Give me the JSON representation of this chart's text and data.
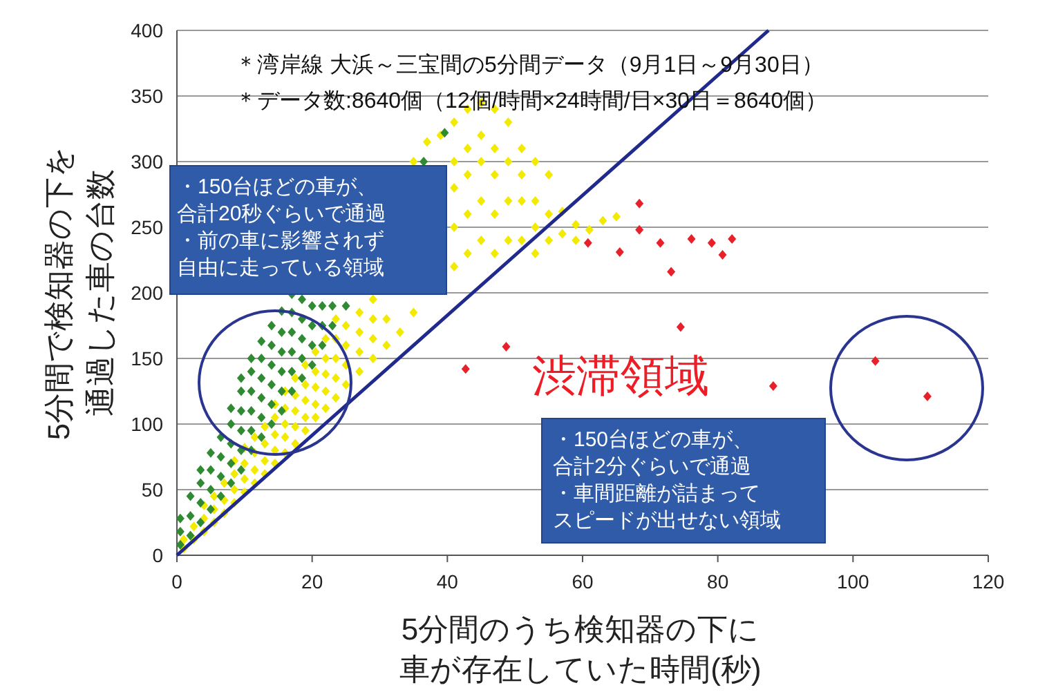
{
  "chart_data": {
    "type": "scatter",
    "xlabel": "5分間のうち検知器の下に車が存在していた時間(秒)",
    "ylabel": "5分間で検知器の下を通過した車の台数",
    "xlim": [
      0,
      120
    ],
    "xticks": [
      0,
      20,
      40,
      60,
      80,
      100,
      120
    ],
    "ylim": [
      0,
      400
    ],
    "yticks": [
      0,
      50,
      100,
      150,
      200,
      250,
      300,
      350,
      400
    ],
    "grid": "y",
    "marker": "diamond",
    "annotations": [
      "＊湾岸線 大浜～三宝間の5分間データ（9月1日～9月30日）",
      "＊データ数:8640個（12個/時間×24時間/日×30日＝8640個）",
      "・150台ほどの車が、合計20秒ぐらいで通過・前の車に影響されず自由に走っている領域",
      "渋滞領域",
      "・150台ほどの車が、合計2分ぐらいで通過・車間距離が詰まってスピードが出せない領域"
    ],
    "series": [
      {
        "color": "#f2ea00",
        "x": [
          1,
          1,
          2.5,
          2.5,
          4,
          4,
          4,
          5.5,
          5.5,
          5.5,
          7,
          7,
          7,
          8.5,
          8.5,
          8.5,
          8.5,
          10,
          10,
          10,
          10,
          11.5,
          11.5,
          11.5,
          11.5,
          13,
          13,
          13,
          13,
          14.5,
          14.5,
          14.5,
          14.5,
          14.5,
          16,
          16,
          16,
          16,
          16,
          17.5,
          17.5,
          17.5,
          17.5,
          17.5,
          19,
          19,
          19,
          19,
          19,
          20.5,
          20.5,
          20.5,
          20.5,
          20.5,
          22,
          22,
          22,
          22,
          22,
          23.5,
          23.5,
          23.5,
          23.5,
          23.5,
          25,
          25,
          25,
          25,
          27,
          27,
          27,
          27,
          29,
          29,
          29,
          29,
          31,
          31,
          33,
          35,
          35,
          37,
          39,
          41,
          41,
          41,
          41,
          41,
          43,
          43,
          43,
          43,
          43,
          45,
          45,
          45,
          45,
          45,
          47,
          47,
          47,
          47,
          47,
          49,
          49,
          49,
          49,
          51,
          51,
          51,
          51,
          53,
          53,
          53,
          53,
          55,
          55,
          55,
          57,
          57,
          59,
          59,
          61,
          63,
          65
        ],
        "values": [
          5,
          12,
          12,
          22,
          18,
          28,
          38,
          25,
          35,
          45,
          32,
          42,
          55,
          40,
          50,
          62,
          72,
          48,
          58,
          70,
          82,
          55,
          65,
          78,
          90,
          62,
          72,
          85,
          98,
          70,
          80,
          92,
          105,
          115,
          78,
          90,
          100,
          112,
          125,
          85,
          98,
          110,
          122,
          135,
          95,
          105,
          118,
          130,
          145,
          105,
          115,
          128,
          140,
          155,
          112,
          125,
          138,
          150,
          165,
          120,
          135,
          150,
          165,
          180,
          130,
          145,
          160,
          175,
          140,
          155,
          170,
          185,
          150,
          165,
          180,
          195,
          160,
          180,
          170,
          185,
          300,
          315,
          320,
          220,
          250,
          280,
          300,
          330,
          230,
          260,
          290,
          310,
          340,
          240,
          270,
          300,
          320,
          345,
          230,
          260,
          290,
          310,
          340,
          240,
          270,
          300,
          330,
          240,
          270,
          290,
          310,
          230,
          250,
          270,
          300,
          240,
          260,
          290,
          245,
          262,
          240,
          252,
          248,
          255,
          258
        ]
      },
      {
        "color": "#2f8a32",
        "x": [
          0.5,
          0.5,
          0.5,
          2,
          2,
          2,
          3.5,
          3.5,
          3.5,
          3.5,
          5,
          5,
          5,
          5,
          6.5,
          6.5,
          6.5,
          6.5,
          8,
          8,
          8,
          8,
          8,
          9.5,
          9.5,
          9.5,
          9.5,
          9.5,
          9.5,
          11,
          11,
          11,
          11,
          11,
          11,
          12.5,
          12.5,
          12.5,
          12.5,
          12.5,
          12.5,
          14,
          14,
          14,
          14,
          14,
          14,
          15.5,
          15.5,
          15.5,
          15.5,
          15.5,
          15.5,
          17,
          17,
          17,
          17,
          17,
          17,
          18.5,
          18.5,
          18.5,
          18.5,
          18.5,
          20,
          20,
          20,
          20,
          21.5,
          21.5,
          21.5,
          23,
          23,
          25,
          36.5,
          39.6
        ],
        "values": [
          8,
          18,
          28,
          15,
          30,
          45,
          25,
          40,
          55,
          65,
          35,
          50,
          65,
          78,
          45,
          60,
          75,
          90,
          55,
          70,
          85,
          100,
          112,
          65,
          80,
          95,
          110,
          125,
          135,
          80,
          95,
          110,
          125,
          140,
          150,
          90,
          105,
          120,
          135,
          150,
          163,
          100,
          115,
          130,
          145,
          160,
          175,
          110,
          125,
          140,
          155,
          170,
          186,
          125,
          140,
          155,
          170,
          185,
          199,
          135,
          150,
          165,
          180,
          195,
          145,
          160,
          175,
          190,
          160,
          175,
          190,
          175,
          190,
          190,
          300,
          322
        ]
      },
      {
        "color": "#e8202a",
        "x": [
          68.4,
          68.4,
          60.8,
          65.5,
          71.5,
          76.1,
          79.1,
          82.1,
          80.7,
          73.1,
          74.5,
          48.7,
          42.7,
          88.2,
          103.3,
          111
        ],
        "values": [
          268,
          248,
          238,
          231,
          238,
          241,
          238,
          241,
          229,
          216,
          174,
          159,
          142,
          129,
          148,
          121
        ]
      },
      {
        "type": "line",
        "color": "#1f2a8c",
        "marker": "none",
        "x": [
          0,
          87.5
        ],
        "values": [
          0,
          400
        ]
      }
    ]
  }
}
